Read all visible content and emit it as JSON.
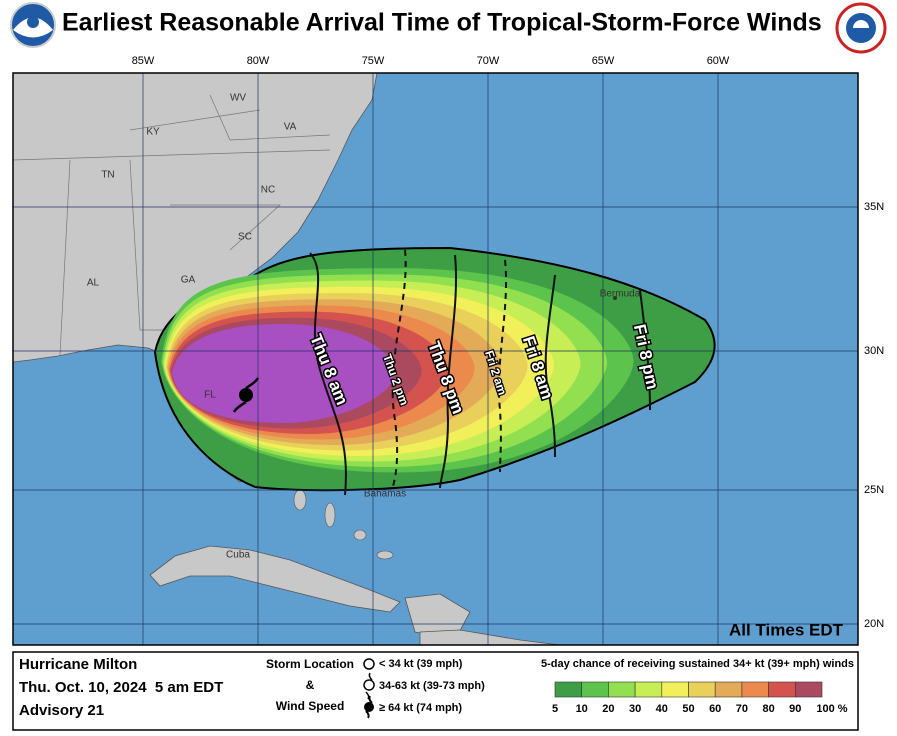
{
  "header": {
    "title": "Earliest Reasonable Arrival Time of Tropical-Storm-Force Winds"
  },
  "map": {
    "longitudes": [
      "85W",
      "80W",
      "75W",
      "70W",
      "65W",
      "60W"
    ],
    "latitudes": [
      "35N",
      "30N",
      "25N",
      "20N"
    ],
    "places": [
      "KY",
      "WV",
      "VA",
      "TN",
      "NC",
      "SC",
      "GA",
      "AL",
      "FL",
      "Cuba",
      "Bahamas",
      "Bermuda"
    ],
    "times": [
      "Thu 8 am",
      "Thu 2 pm",
      "Thu 8 pm",
      "Fri 2 am",
      "Fri 8 am",
      "Fri 8 pm"
    ],
    "note": "All Times EDT"
  },
  "info": {
    "storm": "Hurricane Milton",
    "date": "Thu. Oct. 10, 2024  5 am EDT",
    "advisory": "Advisory 21",
    "key_title_1": "Storm Location",
    "key_amp": "&",
    "key_title_2": "Wind Speed",
    "key_items": [
      "< 34 kt (39 mph)",
      "34-63 kt (39-73 mph)",
      "≥ 64 kt (74 mph)"
    ]
  },
  "legend": {
    "title": "5-day chance of receiving sustained 34+ kt (39+ mph) winds",
    "labels": [
      "5",
      "10",
      "20",
      "30",
      "40",
      "50",
      "60",
      "70",
      "80",
      "90",
      "100 %"
    ],
    "colors": [
      "#3e9e45",
      "#5cc44c",
      "#92e04f",
      "#c8ee55",
      "#f1ef5a",
      "#e8d05a",
      "#e3ab57",
      "#ec8a4e",
      "#d4534f",
      "#ab4a5f",
      "#a84fc2"
    ]
  }
}
